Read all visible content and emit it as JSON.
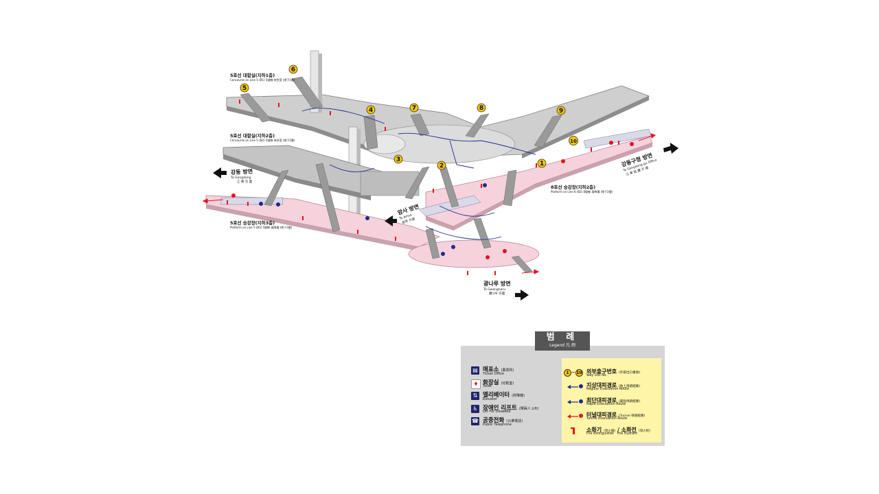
{
  "labels": {
    "concourse1_kr": "5호선 대합실(지하1층)",
    "concourse1_en": "Concourse on Line 5 (B1) 5號線 待合室 (地下1層)",
    "concourse2_kr": "5호선 대합실(지하2층)",
    "concourse2_en": "Concourse on Line 5 (B2) 5號線 待合室 (地下2層)",
    "platform5_kr": "5호선 승강장(지하3층)",
    "platform5_en": "Platform on Line 5 (B3) 5號線 乘降場 (地下3層)",
    "platform8_kr": "8호선 승강장(지하2층)",
    "platform8_en": "Platform on Line 8 (B2) 8號線 乘降場 (地下2層)"
  },
  "directions": {
    "gangdong_kr": "강동 방면",
    "gangdong_en": "To Gangdong",
    "gangdong_cn": "江 東 方 面",
    "amsa_kr": "암사 방면",
    "amsa_en": "To Amsa",
    "amsa_cn": "岩寺 方面",
    "gangdonggu_kr": "강동구청 방면",
    "gangdonggu_en": "To Gangdong-gu Office",
    "gangdonggu_cn": "江 東 區 廳 方 面",
    "gwangnaru_kr": "광나루 방면",
    "gwangnaru_en": "To Gwangnaru",
    "gwangnaru_cn": "廣나루 方面"
  },
  "exits": [
    "1",
    "2",
    "3",
    "4",
    "5",
    "6",
    "7",
    "8",
    "9",
    "10"
  ],
  "legend": {
    "title_kr": "범 례",
    "title_en": "Legend",
    "title_cn": "凡 例",
    "left": [
      {
        "kr": "매표소",
        "cn": "(賣票所)",
        "en": "Ticket Office",
        "icon": "ticket-office-icon"
      },
      {
        "kr": "화장실",
        "cn": "(化粧室)",
        "en": "Toilet",
        "icon": "toilet-icon"
      },
      {
        "kr": "엘리베이터",
        "cn": "(昇降機)",
        "en": "Elevator",
        "icon": "elevator-icon"
      },
      {
        "kr": "장애인 리프트",
        "cn": "(障碍人 Lift)",
        "en": "Lift For Disabled",
        "icon": "wheelchair-lift-icon"
      },
      {
        "kr": "공중전화",
        "cn": "(公衆電話)",
        "en": "Public Telephone",
        "icon": "telephone-icon"
      }
    ],
    "exit_range_start": "1",
    "exit_range_sep": "~",
    "exit_range_end": "10",
    "right": [
      {
        "kr": "외부출구번호",
        "cn": "(外部出口番號)",
        "en": "Way Out No.",
        "icon": "exit-number-icon"
      },
      {
        "kr": "지상대피경로",
        "cn": "(地上待避經路)",
        "en": "Regular Evacuation Route",
        "icon": "regular-evacuation-icon"
      },
      {
        "kr": "최단대피경로",
        "cn": "(最短待避經路)",
        "en": "Rapid Evacuation Route",
        "icon": "rapid-evacuation-icon"
      },
      {
        "kr": "터널대피경로",
        "cn": "(Tunnel 待避經路)",
        "en": "Tunnel Evacuation Route",
        "icon": "tunnel-evacuation-icon"
      }
    ],
    "extinguisher_kr": "소화기",
    "extinguisher_cn": "(消火器)",
    "extinguisher_en": "Fire Extinguisher",
    "hydrant_kr": "소화전",
    "hydrant_cn": "(消火栓)",
    "hydrant_en": "Fire Hydrant"
  },
  "colors": {
    "concourse_gray": "#c8c8c8",
    "concourse_dark": "#8a8a8a",
    "platform_pink": "#f6d2dc",
    "exit_yellow": "#f5c400",
    "route_blue": "#1c2a8c",
    "route_red": "#e8101c",
    "legend_bg": "#d5d5d5",
    "legend_yellow": "#fff5a8"
  }
}
